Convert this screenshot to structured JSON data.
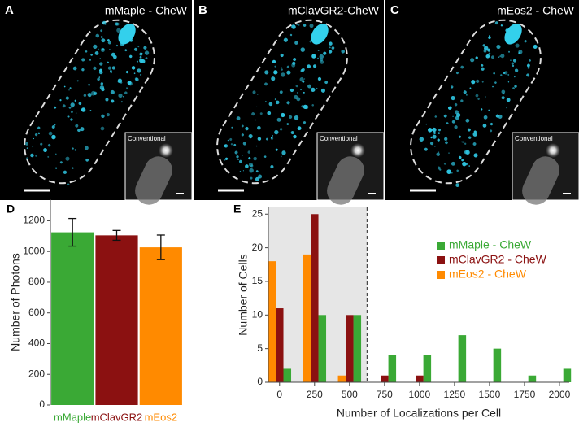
{
  "panels": [
    {
      "label": "A",
      "title": "mMaple - CheW",
      "inset": "Conventional"
    },
    {
      "label": "B",
      "title": "mClavGR2-CheW",
      "inset": "Conventional"
    },
    {
      "label": "C",
      "title": "mEos2 - CheW",
      "inset": "Conventional"
    }
  ],
  "chart_data": [
    {
      "type": "bar",
      "panel_label": "D",
      "ylabel": "Number of Photons",
      "categories": [
        "mMaple",
        "mClavGR2",
        "mEos2"
      ],
      "values": [
        1125,
        1105,
        1027
      ],
      "errors": [
        90,
        32,
        80
      ],
      "colors": [
        "#3aa935",
        "#8b1111",
        "#ff8a00"
      ],
      "ylim": [
        0,
        1340
      ],
      "yticks": [
        0,
        200,
        400,
        600,
        800,
        1000,
        1200
      ]
    },
    {
      "type": "grouped-bar",
      "panel_label": "E",
      "xlabel": "Number of Localizations per Cell",
      "ylabel": "Number of Cells",
      "x": [
        0,
        250,
        500,
        750,
        1000,
        1250,
        1500,
        1750,
        2000
      ],
      "series": [
        {
          "name": "mMaple - CheW",
          "color": "#3aa935",
          "values": [
            2,
            10,
            10,
            4,
            4,
            7,
            5,
            1,
            2
          ]
        },
        {
          "name": "mClavGR2 - CheW",
          "color": "#8b1111",
          "values": [
            11,
            25,
            10,
            1,
            1,
            0,
            0,
            0,
            0
          ]
        },
        {
          "name": "mEos2 - CheW",
          "color": "#ff8a00",
          "values": [
            18,
            19,
            1,
            0,
            0,
            0,
            0,
            0,
            0
          ]
        }
      ],
      "shaded_until": 625,
      "xlim": [
        -80,
        2070
      ],
      "xticks": [
        0,
        250,
        500,
        750,
        1000,
        1250,
        1500,
        1750,
        2000
      ],
      "ylim": [
        0,
        26
      ],
      "yticks": [
        0,
        5,
        10,
        15,
        20,
        25
      ]
    }
  ]
}
